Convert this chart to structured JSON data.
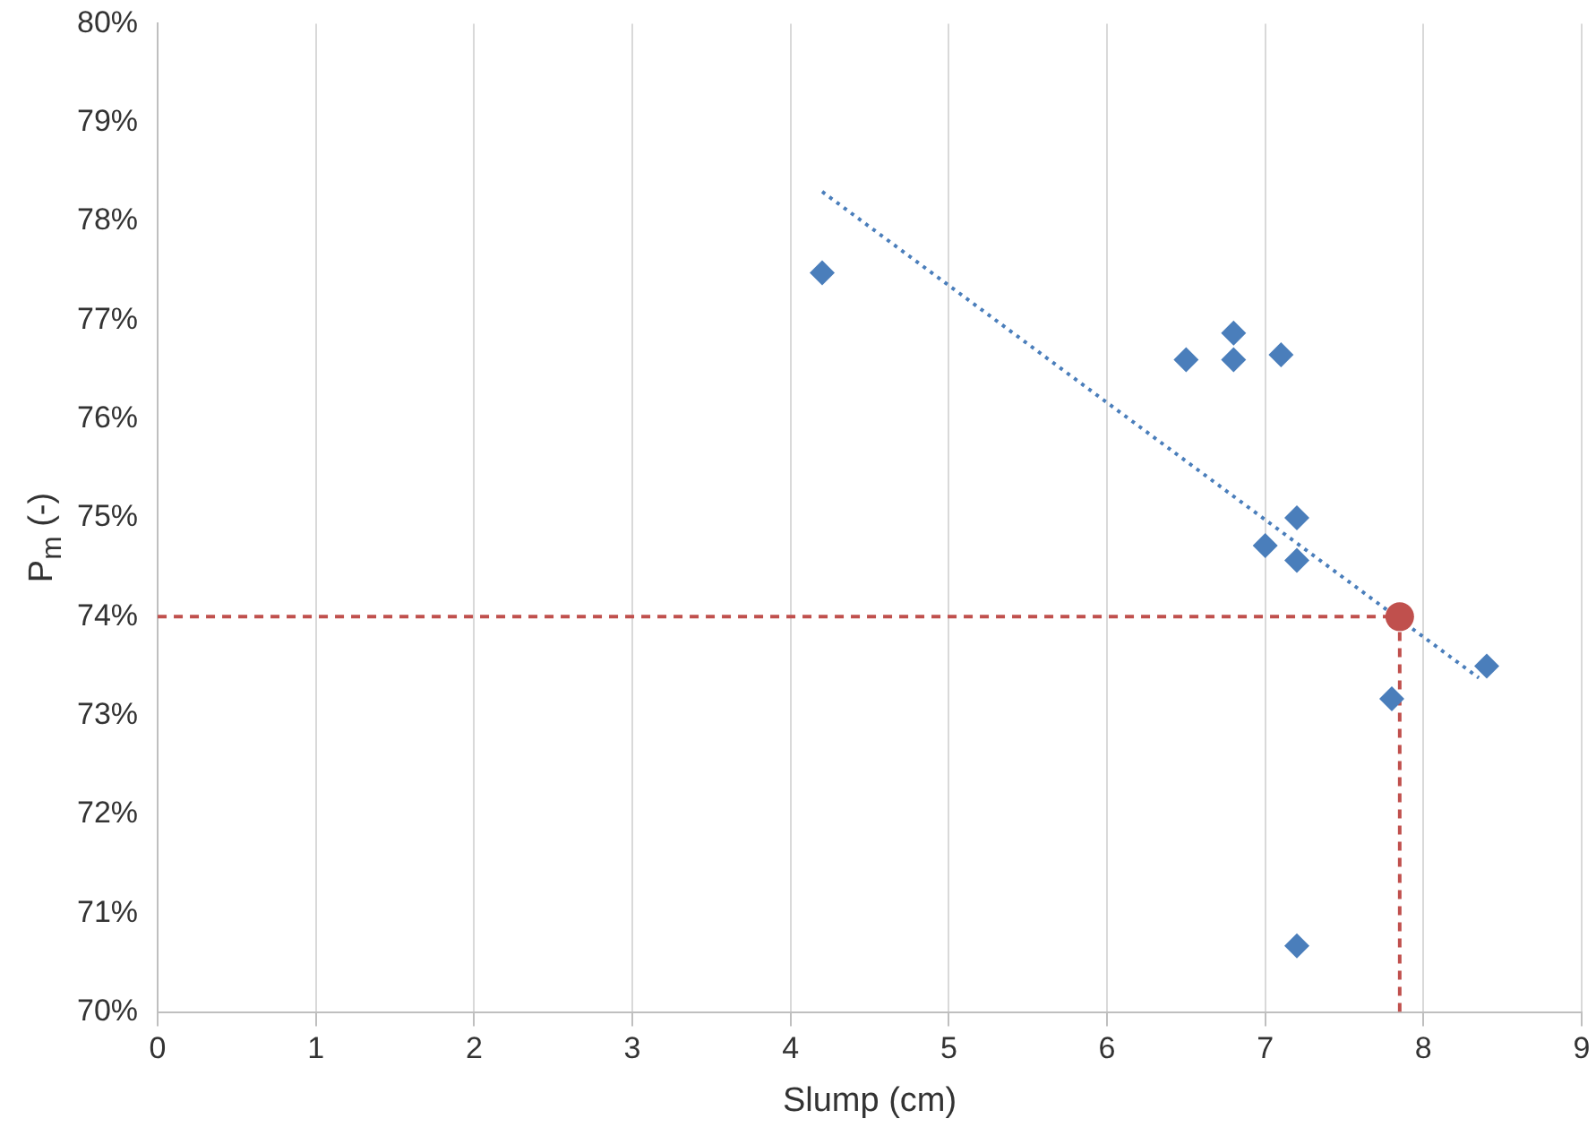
{
  "chart_data": {
    "type": "scatter",
    "xlabel": "Slump (cm)",
    "ylabel": "P$_{m}$ (-)",
    "xlim": [
      0,
      9
    ],
    "xticks": [
      0,
      1,
      2,
      3,
      4,
      5,
      6,
      7,
      8,
      9
    ],
    "ylim": [
      70,
      80
    ],
    "yticks": [
      {
        "value": 70,
        "label": "70%"
      },
      {
        "value": 71,
        "label": "71%"
      },
      {
        "value": 72,
        "label": "72%"
      },
      {
        "value": 73,
        "label": "73%"
      },
      {
        "value": 74,
        "label": "74%"
      },
      {
        "value": 75,
        "label": "75%"
      },
      {
        "value": 76,
        "label": "76%"
      },
      {
        "value": 77,
        "label": "77%"
      },
      {
        "value": 78,
        "label": "78%"
      },
      {
        "value": 79,
        "label": "79%"
      },
      {
        "value": 80,
        "label": "80%"
      }
    ],
    "grid": "x",
    "marker": "diamond",
    "series": [
      {
        "type": "line",
        "color": "#4a7ebb",
        "line_style": "dotted",
        "marker": "none",
        "x": [
          4.2,
          8.35
        ],
        "values": [
          78.3,
          73.38
        ]
      },
      {
        "type": "line",
        "color": "#c0504d",
        "line_style": "dashed",
        "marker": "none",
        "x": [
          0,
          7.85
        ],
        "values": [
          74,
          74
        ]
      },
      {
        "type": "line",
        "color": "#c0504d",
        "line_style": "dashed",
        "marker": "none",
        "x": [
          7.85,
          7.85
        ],
        "values": [
          70,
          74
        ]
      },
      {
        "type": "scatter",
        "color": "#4a7ebb",
        "x": [
          4.2,
          6.5,
          6.8,
          6.8,
          7.1,
          7.2,
          7.0,
          7.2,
          7.8,
          8.4,
          7.2
        ],
        "values": [
          77.48,
          76.6,
          76.87,
          76.6,
          76.65,
          75.0,
          74.72,
          74.57,
          73.17,
          73.5,
          70.67
        ]
      },
      {
        "type": "scatter",
        "color": "#c0504d",
        "marker": "circle",
        "x": [
          7.85
        ],
        "values": [
          74.0
        ]
      }
    ]
  }
}
